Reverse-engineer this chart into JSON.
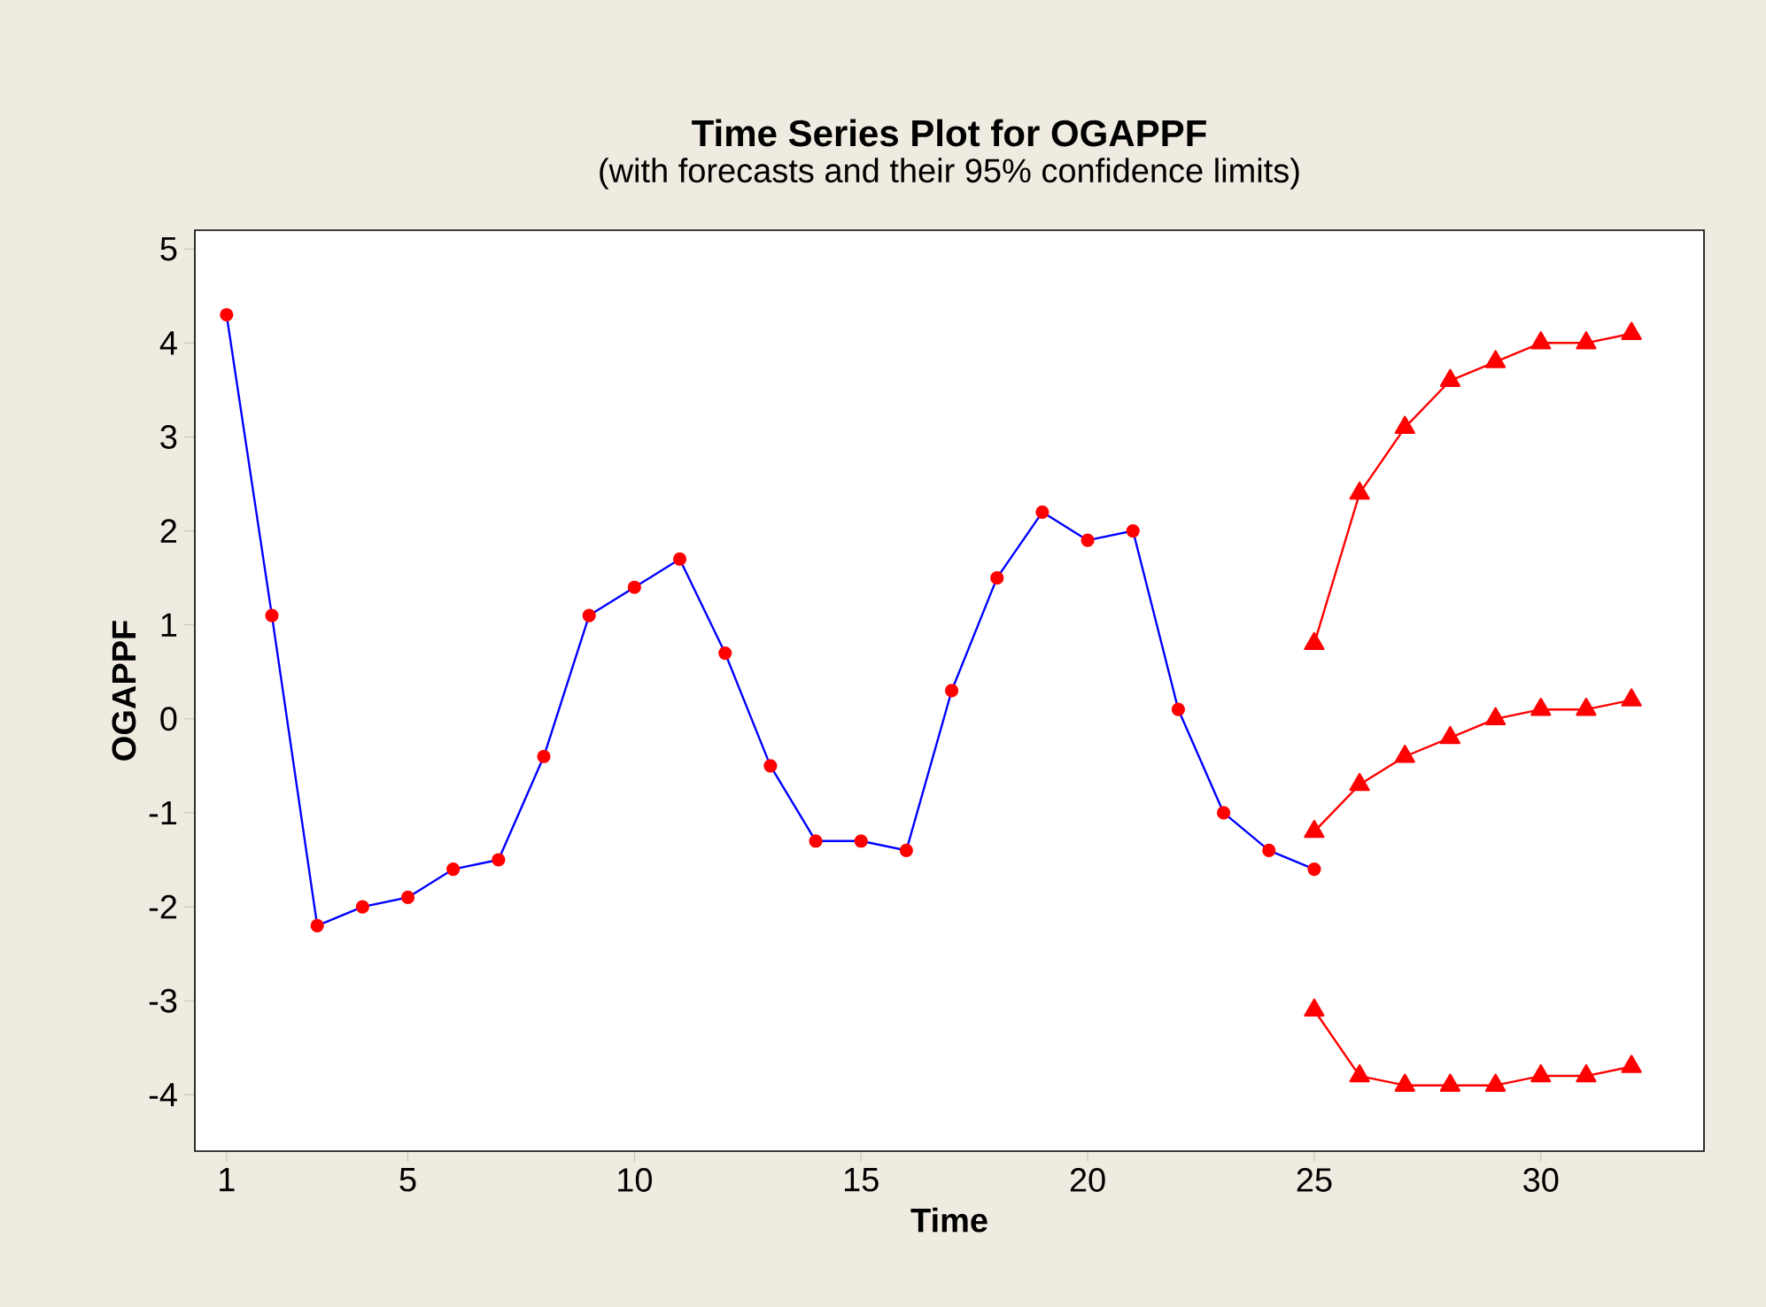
{
  "chart_data": {
    "type": "line",
    "title": "Time Series Plot for OGAPPF",
    "subtitle": "(with forecasts and their 95% confidence limits)",
    "xlabel": "Time",
    "ylabel": "OGAPPF",
    "xlim": [
      0.3,
      33.6
    ],
    "ylim": [
      -4.6,
      5.2
    ],
    "xticks": [
      1,
      5,
      10,
      15,
      20,
      25,
      30
    ],
    "yticks": [
      -4,
      -3,
      -2,
      -1,
      0,
      1,
      2,
      3,
      4,
      5
    ],
    "grid": false,
    "series": [
      {
        "color": "#0000ff",
        "marker": "circle",
        "x": [
          1,
          2,
          3,
          4,
          5,
          6,
          7,
          8,
          9,
          10,
          11,
          12,
          13,
          14,
          15,
          16,
          17,
          18,
          19,
          20,
          21,
          22,
          23,
          24,
          25
        ],
        "values": [
          4.3,
          1.1,
          -2.2,
          -2.0,
          -1.9,
          -1.6,
          -1.5,
          -0.4,
          1.1,
          1.4,
          1.7,
          0.7,
          -0.5,
          -1.3,
          -1.3,
          -1.4,
          0.3,
          1.5,
          2.2,
          1.9,
          2.0,
          0.1,
          -1.0,
          -1.4,
          -1.6
        ]
      },
      {
        "color": "#ff0000",
        "marker": "triangle",
        "x": [
          25,
          26,
          27,
          28,
          29,
          30,
          31,
          32
        ],
        "values": [
          0.8,
          2.4,
          3.1,
          3.6,
          3.8,
          4.0,
          4.0,
          4.1
        ]
      },
      {
        "color": "#ff0000",
        "marker": "triangle",
        "x": [
          25,
          26,
          27,
          28,
          29,
          30,
          31,
          32
        ],
        "values": [
          -1.2,
          -0.7,
          -0.4,
          -0.2,
          0.0,
          0.1,
          0.1,
          0.2
        ]
      },
      {
        "color": "#ff0000",
        "marker": "triangle",
        "x": [
          25,
          26,
          27,
          28,
          29,
          30,
          31,
          32
        ],
        "values": [
          -3.1,
          -3.8,
          -3.9,
          -3.9,
          -3.9,
          -3.8,
          -3.8,
          -3.7
        ]
      }
    ]
  }
}
